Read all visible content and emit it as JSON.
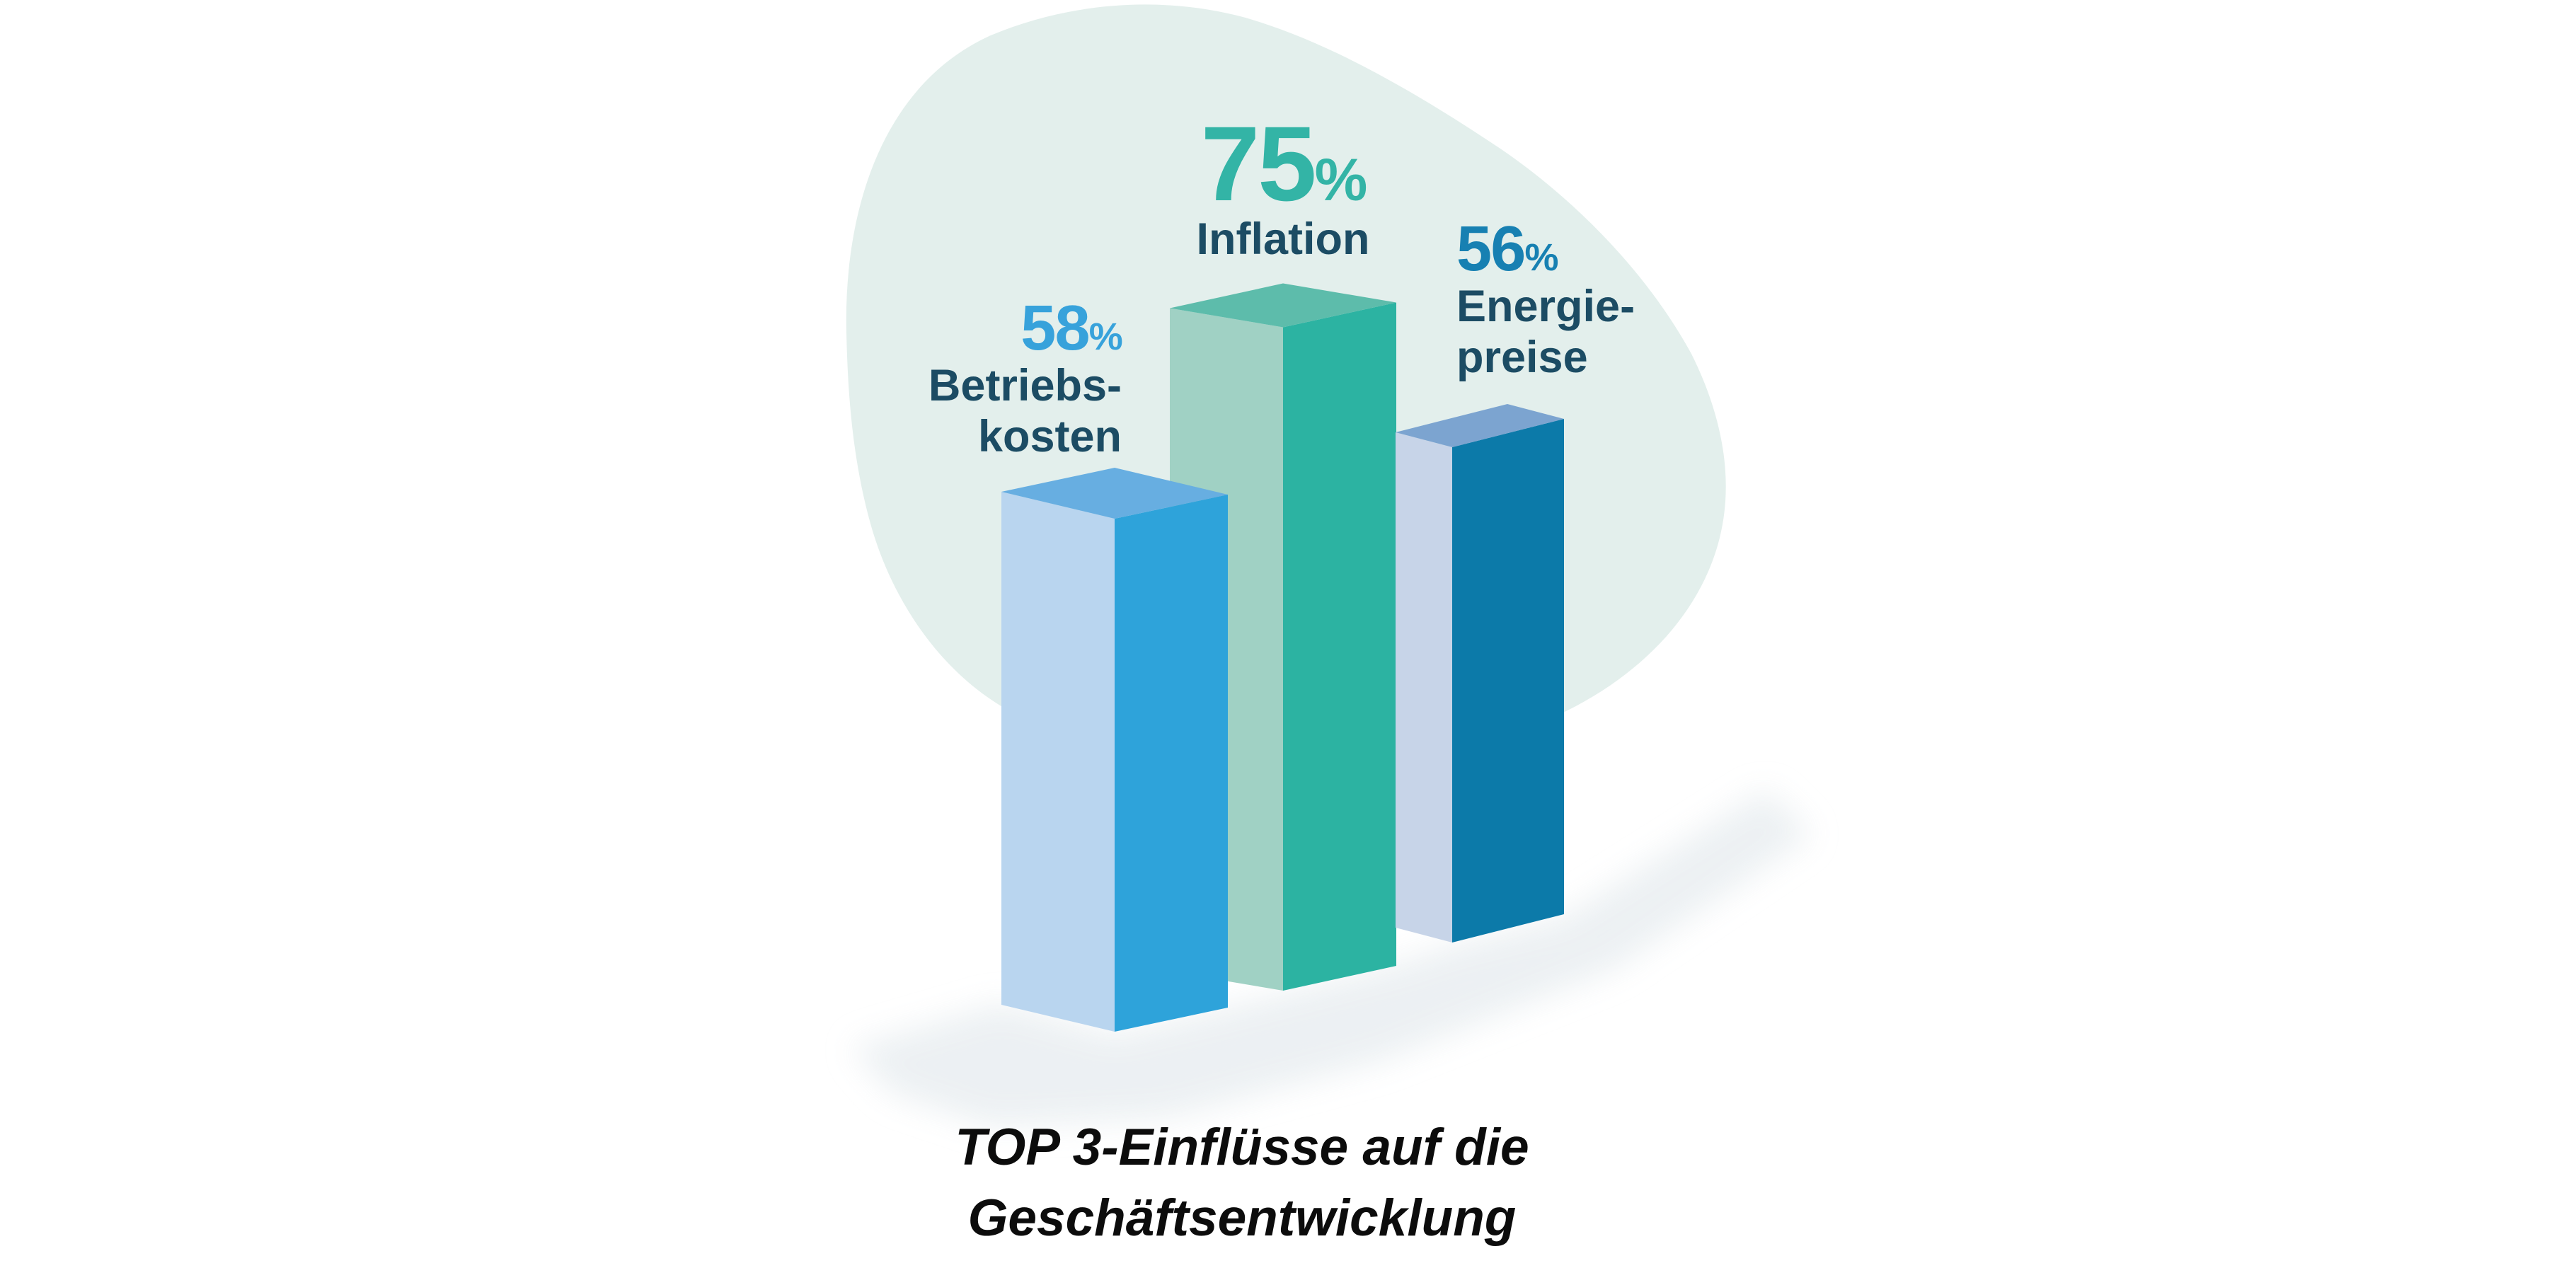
{
  "chart_data": {
    "type": "bar",
    "title": "TOP 3-Einflüsse auf die Geschäftsentwicklung",
    "unit": "%",
    "categories": [
      "Betriebskosten",
      "Inflation",
      "Energiepreise"
    ],
    "values": [
      58,
      75,
      56
    ],
    "ylim": [
      0,
      100
    ],
    "grid": false,
    "legend": false,
    "percent_sign": "%",
    "bars": [
      {
        "id": "betriebskosten",
        "value": 58,
        "label_lines": [
          "Betriebs-",
          "kosten"
        ],
        "number_color": "#37a2db",
        "faces": {
          "left": "#b9d5ef",
          "right": "#2ea3da",
          "top": "#67aee1"
        }
      },
      {
        "id": "inflation",
        "value": 75,
        "label_lines": [
          "Inflation"
        ],
        "number_color": "#33b4a6",
        "faces": {
          "left": "#a0d1c4",
          "right": "#2cb3a2",
          "top": "#5dbcab"
        }
      },
      {
        "id": "energiepreise",
        "value": 56,
        "label_lines": [
          "Energie-",
          "preise"
        ],
        "number_color": "#1780b2",
        "faces": {
          "left": "#c7d4e8",
          "right": "#0c7aa9",
          "top": "#7ca4d0"
        }
      }
    ]
  },
  "caption": {
    "line1": "TOP 3-Einflüsse auf die",
    "line2": "Geschäftsentwicklung"
  },
  "colors": {
    "background": "#ffffff",
    "blob": "#e3efec",
    "shadow": "#e9eef1",
    "label_text": "#1c4c64",
    "caption_text": "#0c0c0c"
  }
}
